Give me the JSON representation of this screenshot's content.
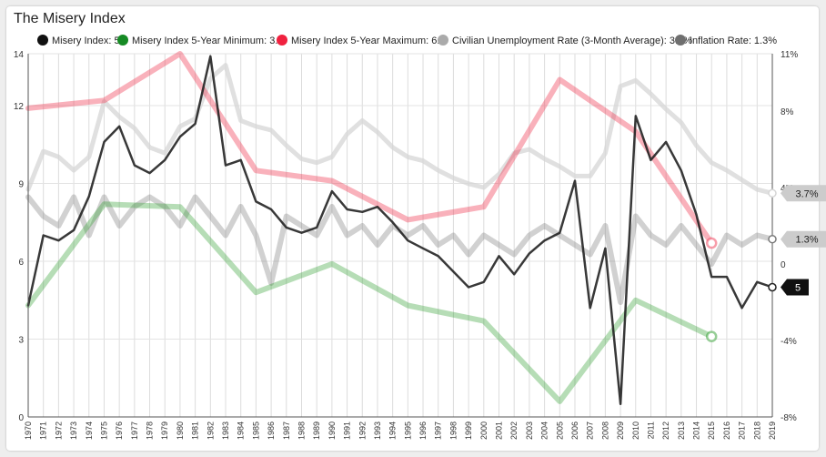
{
  "title": "The Misery Index",
  "chart_data": {
    "type": "line",
    "title": "The Misery Index",
    "x_range": [
      1970,
      2019
    ],
    "ylim_left": [
      0,
      14
    ],
    "ylim_right": [
      -8,
      11
    ],
    "left_ticks": [
      0,
      3,
      6,
      9,
      12,
      14
    ],
    "right_ticks": [
      "-8%",
      "-4%",
      "0",
      "4%",
      "8%",
      "11%"
    ],
    "right_tick_values": [
      -8,
      -4,
      0,
      4,
      8,
      11
    ],
    "x_ticks": [
      "1970",
      "1971",
      "1972",
      "1973",
      "1974",
      "1975",
      "1976",
      "1977",
      "1978",
      "1979",
      "1980",
      "1981",
      "1982",
      "1983",
      "1984",
      "1985",
      "1986",
      "1987",
      "1988",
      "1989",
      "1990",
      "1991",
      "1992",
      "1993",
      "1994",
      "1995",
      "1996",
      "1997",
      "1998",
      "1999",
      "2000",
      "2001",
      "2002",
      "2003",
      "2004",
      "2005",
      "2006",
      "2007",
      "2008",
      "2009",
      "2010",
      "2011",
      "2012",
      "2013",
      "2014",
      "2015",
      "2016",
      "2017",
      "2018",
      "2019"
    ],
    "grid": true,
    "legend_position": "top",
    "series": [
      {
        "name": "Misery Index",
        "legend": "Misery Index: 5",
        "color": "#222222",
        "axis": "left",
        "x": [
          1970,
          1971,
          1972,
          1973,
          1974,
          1975,
          1976,
          1977,
          1978,
          1979,
          1980,
          1981,
          1982,
          1983,
          1984,
          1985,
          1986,
          1987,
          1988,
          1989,
          1990,
          1991,
          1992,
          1993,
          1994,
          1995,
          1996,
          1997,
          1998,
          1999,
          2000,
          2001,
          2002,
          2003,
          2004,
          2005,
          2006,
          2007,
          2008,
          2009,
          2010,
          2011,
          2012,
          2013,
          2014,
          2015,
          2016,
          2017,
          2018,
          2019
        ],
        "values": [
          4.3,
          7.0,
          6.8,
          7.2,
          8.5,
          10.6,
          11.2,
          9.7,
          9.4,
          9.9,
          10.8,
          11.3,
          13.9,
          9.7,
          9.9,
          8.3,
          8.0,
          7.3,
          7.1,
          7.3,
          8.7,
          8.0,
          7.9,
          8.1,
          7.5,
          6.8,
          6.5,
          6.2,
          5.6,
          5.0,
          5.2,
          6.2,
          5.5,
          6.3,
          6.8,
          7.1,
          9.1,
          4.2,
          6.5,
          0.5,
          11.6,
          9.9,
          10.6,
          9.5,
          7.8,
          5.4,
          5.4,
          4.2,
          5.2,
          5.0
        ]
      },
      {
        "name": "Misery Index 5-Year Minimum",
        "legend": "Misery Index 5-Year Minimum: 3.1",
        "color": "#2e9e2e",
        "axis": "left",
        "x": [
          1970,
          1975,
          1980,
          1985,
          1990,
          1995,
          2000,
          2005,
          2010,
          2015
        ],
        "values": [
          4.3,
          8.2,
          8.1,
          4.8,
          5.9,
          4.3,
          3.7,
          0.6,
          4.5,
          3.1
        ]
      },
      {
        "name": "Misery Index 5-Year Maximum",
        "legend": "Misery Index 5-Year Maximum: 6.7",
        "color": "#f03c55",
        "axis": "left",
        "x": [
          1970,
          1975,
          1980,
          1985,
          1990,
          1995,
          2000,
          2005,
          2010,
          2015
        ],
        "values": [
          11.9,
          12.2,
          14.0,
          9.5,
          9.1,
          7.6,
          8.1,
          13.0,
          11.0,
          6.7
        ]
      },
      {
        "name": "Civilian Unemployment Rate (3-Month Average)",
        "legend": "Civilian Unemployment Rate (3-Month Average): 3.7%",
        "color": "#d6d6d6",
        "axis": "right",
        "x": [
          1970,
          1971,
          1972,
          1973,
          1974,
          1975,
          1976,
          1977,
          1978,
          1979,
          1980,
          1981,
          1982,
          1983,
          1984,
          1985,
          1986,
          1987,
          1988,
          1989,
          1990,
          1991,
          1992,
          1993,
          1994,
          1995,
          1996,
          1997,
          1998,
          1999,
          2000,
          2001,
          2002,
          2003,
          2004,
          2005,
          2006,
          2007,
          2008,
          2009,
          2010,
          2011,
          2012,
          2013,
          2014,
          2015,
          2016,
          2017,
          2018,
          2019
        ],
        "values": [
          3.9,
          5.9,
          5.6,
          4.9,
          5.6,
          8.5,
          7.7,
          7.1,
          6.1,
          5.8,
          7.2,
          7.6,
          9.7,
          10.4,
          7.5,
          7.2,
          7.0,
          6.2,
          5.5,
          5.3,
          5.6,
          6.8,
          7.5,
          6.9,
          6.1,
          5.6,
          5.4,
          4.9,
          4.5,
          4.2,
          4.0,
          4.7,
          5.8,
          6.0,
          5.5,
          5.1,
          4.6,
          4.6,
          5.8,
          9.3,
          9.6,
          8.9,
          8.1,
          7.4,
          6.2,
          5.3,
          4.9,
          4.4,
          3.9,
          3.7
        ]
      },
      {
        "name": "Inflation Rate",
        "legend": "Inflation Rate: 1.3%",
        "color": "#7a7a7a",
        "axis": "right",
        "x": [
          1970,
          1971,
          1972,
          1973,
          1974,
          1975,
          1976,
          1977,
          1978,
          1979,
          1980,
          1981,
          1982,
          1983,
          1984,
          1985,
          1986,
          1987,
          1988,
          1989,
          1990,
          1991,
          1992,
          1993,
          1994,
          1995,
          1996,
          1997,
          1998,
          1999,
          2000,
          2001,
          2002,
          2003,
          2004,
          2005,
          2006,
          2007,
          2008,
          2009,
          2010,
          2011,
          2012,
          2013,
          2014,
          2015,
          2016,
          2017,
          2018,
          2019
        ],
        "values": [
          3.5,
          2.5,
          2.0,
          3.5,
          1.5,
          3.5,
          2.0,
          3.0,
          3.5,
          3.0,
          2.0,
          3.5,
          2.5,
          1.5,
          3.0,
          1.5,
          -1.0,
          2.5,
          2.0,
          1.5,
          3.0,
          1.5,
          2.0,
          1.0,
          2.0,
          1.5,
          2.0,
          1.0,
          1.5,
          0.5,
          1.5,
          1.0,
          0.5,
          1.5,
          2.0,
          1.5,
          1.0,
          0.5,
          2.0,
          -2.0,
          2.5,
          1.5,
          1.0,
          2.0,
          1.0,
          0.0,
          1.5,
          1.0,
          1.5,
          1.3
        ]
      }
    ],
    "end_labels": [
      {
        "text": "3.7%",
        "series": "Civilian Unemployment Rate (3-Month Average)"
      },
      {
        "text": "1.3%",
        "series": "Inflation Rate"
      },
      {
        "text": "5",
        "series": "Misery Index"
      }
    ]
  }
}
